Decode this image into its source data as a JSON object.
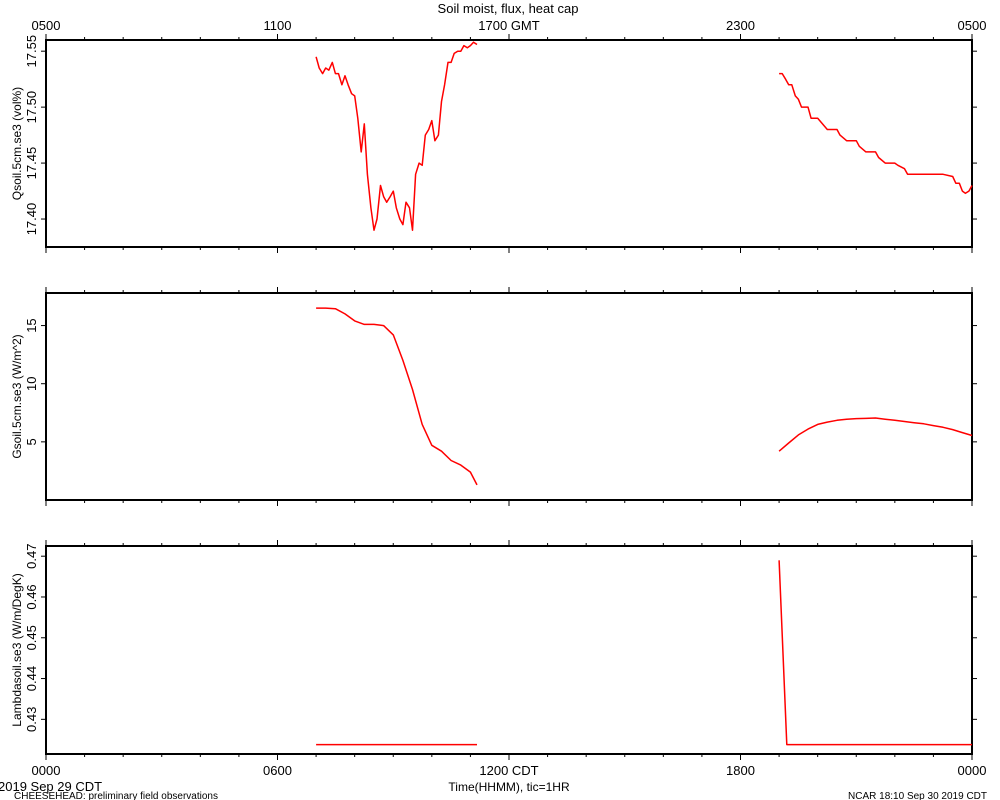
{
  "figure": {
    "title": "Soil moist, flux, heat cap",
    "xlabel": "Time(HHMM), tic=1HR",
    "date_label": "2019 Sep 29 CDT",
    "footer_left": "CHEESEHEAD: preliminary field observations",
    "footer_right": "NCAR 18:10 Sep 30 2019 CDT",
    "line_color": "#ff0000"
  },
  "chart_data": [
    {
      "type": "line",
      "x_unit": "hours since 0000 CDT",
      "xlim": [
        0,
        24
      ],
      "x_ticks_bottom": [
        {
          "x": 0,
          "label": "0000"
        },
        {
          "x": 6,
          "label": "0600"
        },
        {
          "x": 12,
          "label": "1200 CDT"
        },
        {
          "x": 18,
          "label": "1800"
        },
        {
          "x": 24,
          "label": "0000"
        }
      ],
      "x_ticks_top": [
        {
          "x": 0,
          "label": "0500"
        },
        {
          "x": 6,
          "label": "1100"
        },
        {
          "x": 12,
          "label": "1700 GMT"
        },
        {
          "x": 18,
          "label": "2300"
        },
        {
          "x": 24,
          "label": "0500"
        }
      ],
      "ylabel": "Qsoil.5cm.se3 (vol%)",
      "ylim": [
        17.375,
        17.56
      ],
      "yticks": [
        17.4,
        17.45,
        17.5,
        17.55
      ],
      "ytick_labels": [
        "17.40",
        "17.45",
        "17.50",
        "17.55"
      ],
      "segments": [
        {
          "x": [
            7.0,
            7.08,
            7.17,
            7.25,
            7.33,
            7.42,
            7.5,
            7.58,
            7.67,
            7.75,
            7.83,
            7.92,
            8.0,
            8.08,
            8.17,
            8.25,
            8.33,
            8.42,
            8.5,
            8.58,
            8.67,
            8.75,
            8.83,
            8.92,
            9.0,
            9.08,
            9.17,
            9.25,
            9.33,
            9.42,
            9.5,
            9.58,
            9.67,
            9.75,
            9.83,
            9.92,
            10.0,
            10.08,
            10.17,
            10.25,
            10.33,
            10.42,
            10.5,
            10.58,
            10.67,
            10.75,
            10.83,
            10.92,
            11.0,
            11.08,
            11.17
          ],
          "y": [
            17.545,
            17.535,
            17.53,
            17.535,
            17.533,
            17.54,
            17.53,
            17.53,
            17.52,
            17.528,
            17.52,
            17.512,
            17.51,
            17.49,
            17.46,
            17.485,
            17.44,
            17.41,
            17.39,
            17.4,
            17.43,
            17.42,
            17.415,
            17.42,
            17.425,
            17.41,
            17.4,
            17.395,
            17.415,
            17.41,
            17.39,
            17.44,
            17.45,
            17.448,
            17.475,
            17.48,
            17.488,
            17.47,
            17.475,
            17.505,
            17.52,
            17.54,
            17.54,
            17.548,
            17.55,
            17.55,
            17.555,
            17.553,
            17.555,
            17.558,
            17.556
          ]
        },
        {
          "x": [
            19.0,
            19.08,
            19.17,
            19.25,
            19.33,
            19.42,
            19.5,
            19.58,
            19.67,
            19.75,
            19.83,
            19.92,
            20.0,
            20.25,
            20.33,
            20.5,
            20.58,
            20.75,
            20.83,
            21.0,
            21.08,
            21.25,
            21.33,
            21.5,
            21.58,
            21.75,
            21.83,
            22.0,
            22.08,
            22.25,
            22.33,
            22.5,
            22.58,
            22.75,
            22.83,
            23.0,
            23.25,
            23.5,
            23.58,
            23.67,
            23.75,
            23.83,
            23.92,
            24.0
          ],
          "y": [
            17.53,
            17.53,
            17.525,
            17.52,
            17.52,
            17.51,
            17.507,
            17.5,
            17.5,
            17.5,
            17.49,
            17.49,
            17.49,
            17.48,
            17.48,
            17.48,
            17.475,
            17.47,
            17.47,
            17.47,
            17.465,
            17.46,
            17.46,
            17.46,
            17.455,
            17.45,
            17.45,
            17.45,
            17.448,
            17.445,
            17.44,
            17.44,
            17.44,
            17.44,
            17.44,
            17.44,
            17.44,
            17.438,
            17.432,
            17.432,
            17.425,
            17.423,
            17.425,
            17.43
          ]
        }
      ]
    },
    {
      "type": "line",
      "x_unit": "hours since 0000 CDT",
      "xlim": [
        0,
        24
      ],
      "ylabel": "Gsoil.5cm.se3 (W/m^2)",
      "ylim": [
        0,
        17.8
      ],
      "yticks": [
        5,
        10,
        15
      ],
      "ytick_labels": [
        "5",
        "10",
        "15"
      ],
      "segments": [
        {
          "x": [
            7.0,
            7.25,
            7.5,
            7.75,
            8.0,
            8.25,
            8.5,
            8.75,
            9.0,
            9.25,
            9.5,
            9.75,
            10.0,
            10.25,
            10.5,
            10.75,
            11.0,
            11.17
          ],
          "y": [
            16.5,
            16.5,
            16.45,
            16.0,
            15.4,
            15.1,
            15.1,
            15.0,
            14.2,
            12.0,
            9.5,
            6.5,
            4.7,
            4.2,
            3.4,
            3.0,
            2.4,
            1.3
          ]
        },
        {
          "x": [
            19.0,
            19.25,
            19.5,
            19.75,
            20.0,
            20.25,
            20.5,
            20.75,
            21.0,
            21.25,
            21.5,
            21.75,
            22.0,
            22.25,
            22.5,
            22.75,
            23.0,
            23.25,
            23.5,
            23.75,
            24.0
          ],
          "y": [
            4.2,
            4.9,
            5.6,
            6.1,
            6.5,
            6.7,
            6.85,
            6.95,
            7.0,
            7.02,
            7.05,
            6.95,
            6.85,
            6.75,
            6.65,
            6.55,
            6.4,
            6.25,
            6.05,
            5.8,
            5.55
          ]
        }
      ]
    },
    {
      "type": "line",
      "x_unit": "hours since 0000 CDT",
      "xlim": [
        0,
        24
      ],
      "ylabel": "Lambdasoil.se3 (W/m/DegK)",
      "ylim": [
        0.4215,
        0.4725
      ],
      "yticks": [
        0.43,
        0.44,
        0.45,
        0.46,
        0.47
      ],
      "ytick_labels": [
        "0.43",
        "0.44",
        "0.45",
        "0.46",
        "0.47"
      ],
      "segments": [
        {
          "x": [
            7.0,
            11.17
          ],
          "y": [
            0.4238,
            0.4238
          ]
        },
        {
          "x": [
            19.0,
            19.2,
            24.0
          ],
          "y": [
            0.469,
            0.4238,
            0.4238
          ]
        }
      ]
    }
  ]
}
